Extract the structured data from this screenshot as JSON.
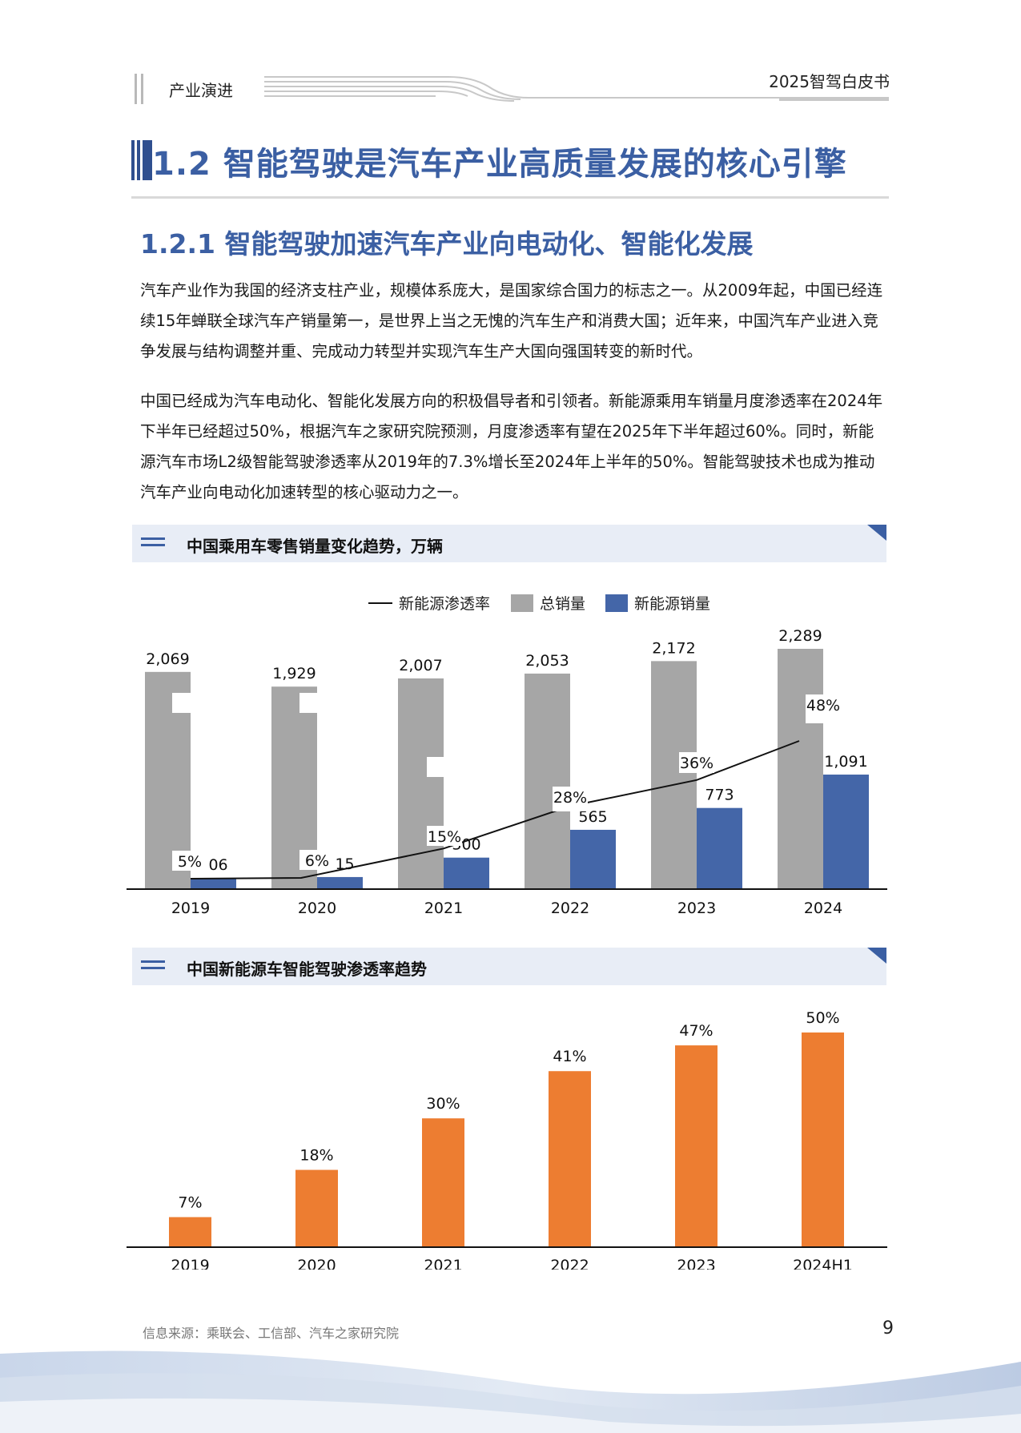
{
  "header": {
    "left_title": "产业演进",
    "right_title": "2025智驾白皮书"
  },
  "section": {
    "title": "1.2 智能驾驶是汽车产业高质量发展的核心引擎",
    "subtitle": "1.2.1 智能驾驶加速汽车产业向电动化、智能化发展"
  },
  "paragraphs": [
    "汽车产业作为我国的经济支柱产业，规模体系庞大，是国家综合国力的标志之一。从2009年起，中国已经连续15年蝉联全球汽车产销量第一，是世界上当之无愧的汽车生产和消费大国；近年来，中国汽车产业进入竞争发展与结构调整并重、完成动力转型并实现汽车生产大国向强国转变的新时代。",
    "中国已经成为汽车电动化、智能化发展方向的积极倡导者和引领者。新能源乘用车销量月度渗透率在2024年下半年已经超过50%，根据汽车之家研究院预测，月度渗透率有望在2025年下半年超过60%。同时，新能源汽车市场L2级智能驾驶渗透率从2019年的7.3%增长至2024年上半年的50%。智能驾驶技术也成为推动汽车产业向电动化加速转型的核心驱动力之一。"
  ],
  "chart1_title": "中国乘用车零售销量变化趋势，万辆",
  "chart2_title": "中国新能源车智能驾驶渗透率趋势",
  "footer": {
    "source": "信息来源：乘联会、工信部、汽车之家研究院",
    "page": "9"
  },
  "colors": {
    "accent": "#3b5fa3",
    "total_bar": "#a6a6a6",
    "nev_bar": "#4466a8",
    "orange_bar": "#ed7d31"
  },
  "chart_data": [
    {
      "type": "bar",
      "title": "中国乘用车零售销量变化趋势，万辆",
      "categories": [
        "2019",
        "2020",
        "2021",
        "2022",
        "2023",
        "2024"
      ],
      "series": [
        {
          "name": "总销量",
          "type": "bar",
          "values": [
            2069,
            1929,
            2007,
            2053,
            2172,
            2289
          ],
          "labels": [
            "2,069",
            "1,929",
            "2,007",
            "2,053",
            "2,172",
            "2,289"
          ]
        },
        {
          "name": "新能源销量",
          "type": "bar",
          "values": [
            106,
            115,
            300,
            565,
            773,
            1091
          ],
          "labels": [
            "106",
            "115",
            "300",
            "565",
            "773",
            "1,091"
          ]
        },
        {
          "name": "新能源渗透率",
          "type": "line",
          "values": [
            5,
            6,
            15,
            28,
            36,
            48
          ],
          "labels": [
            "5%",
            "6%",
            "15%",
            "28%",
            "36%",
            "48%"
          ]
        }
      ],
      "legend": "top-center",
      "ylim": [
        0,
        2400
      ],
      "grid": false
    },
    {
      "type": "bar",
      "title": "中国新能源车智能驾驶渗透率趋势",
      "categories": [
        "2019",
        "2020",
        "2021",
        "2022",
        "2023",
        "2024H1"
      ],
      "values": [
        7,
        18,
        30,
        41,
        47,
        50
      ],
      "labels": [
        "7%",
        "18%",
        "30%",
        "41%",
        "47%",
        "50%"
      ],
      "ylim": [
        0,
        55
      ],
      "grid": false
    }
  ]
}
